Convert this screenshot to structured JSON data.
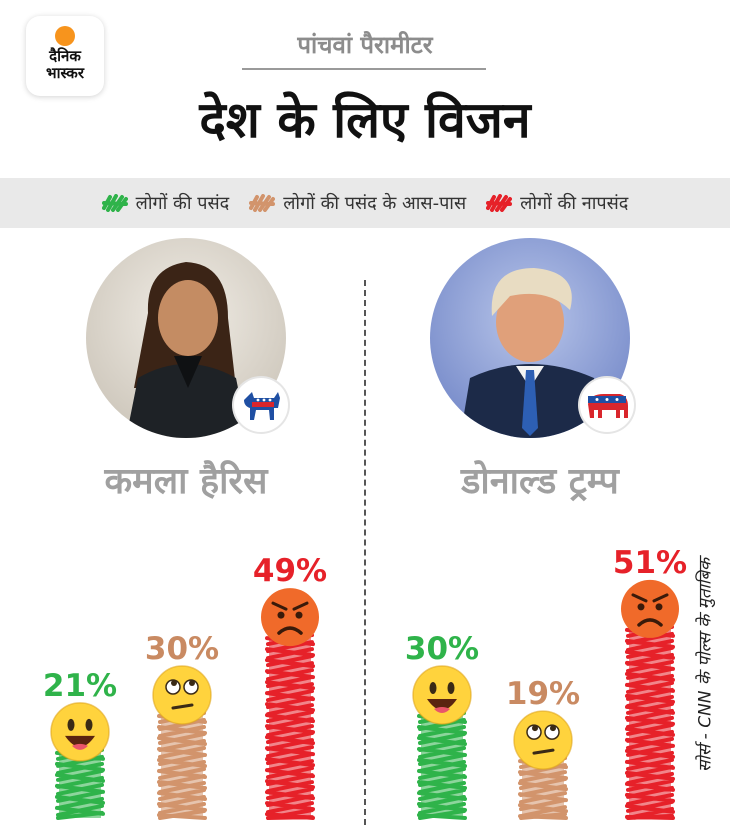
{
  "brand": {
    "line1": "दैनिक",
    "line2": "भास्कर"
  },
  "kicker": "पांचवां पैरामीटर",
  "title": "देश के लिए विजन",
  "colors": {
    "like": "#2fb34a",
    "near": "#d2946c",
    "dislike": "#e62129",
    "pct_near": "#c98a62"
  },
  "legend": [
    {
      "label": "लोगों की पसंद",
      "color": "#2fb34a"
    },
    {
      "label": "लोगों की पसंद के आस-पास",
      "color": "#d2946c"
    },
    {
      "label": "लोगों की नापसंद",
      "color": "#e62129"
    }
  ],
  "candidates": {
    "harris": {
      "name": "कमला हैरिस",
      "party_icon": "donkey-icon"
    },
    "trump": {
      "name": "डोनाल्ड ट्रम्प",
      "party_icon": "elephant-icon"
    }
  },
  "source": "सोर्स - CNN के पोल्स के मुताबिक",
  "chart_data": {
    "type": "bar",
    "categories": [
      "लोगों की पसंद",
      "लोगों की पसंद के आस-पास",
      "लोगों की नापसंद"
    ],
    "series": [
      {
        "name": "कमला हैरिस",
        "values": [
          21,
          30,
          49
        ]
      },
      {
        "name": "डोनाल्ड ट्रम्प",
        "values": [
          30,
          19,
          51
        ]
      }
    ],
    "value_labels": {
      "harris": [
        "21%",
        "30%",
        "49%"
      ],
      "trump": [
        "30%",
        "19%",
        "51%"
      ]
    },
    "emoji": [
      "happy-emoji-icon",
      "eye-roll-emoji-icon",
      "angry-emoji-icon"
    ],
    "ylim": [
      0,
      100
    ],
    "grid": false,
    "legend": "top"
  }
}
